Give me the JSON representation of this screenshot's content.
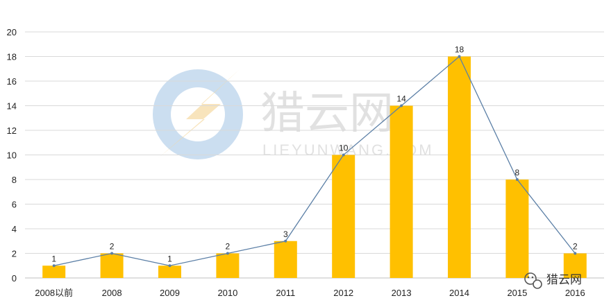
{
  "chart_data": {
    "type": "bar",
    "categories": [
      "2008以前",
      "2008",
      "2009",
      "2010",
      "2011",
      "2012",
      "2013",
      "2014",
      "2015",
      "2016"
    ],
    "values": [
      1,
      2,
      1,
      2,
      3,
      10,
      14,
      18,
      8,
      2
    ],
    "line_overlay": true,
    "ylim": [
      0,
      20
    ],
    "yticks": [
      0,
      2,
      4,
      6,
      8,
      10,
      12,
      14,
      16,
      18,
      20
    ],
    "grid": true,
    "bar_color": "#FFC000",
    "line_color": "#5B7FA6"
  },
  "watermark": {
    "name": "猎云网",
    "sub": "LIEYUNWANG.COM"
  },
  "brand": {
    "label": "猎云网",
    "icon": "wechat-icon"
  }
}
